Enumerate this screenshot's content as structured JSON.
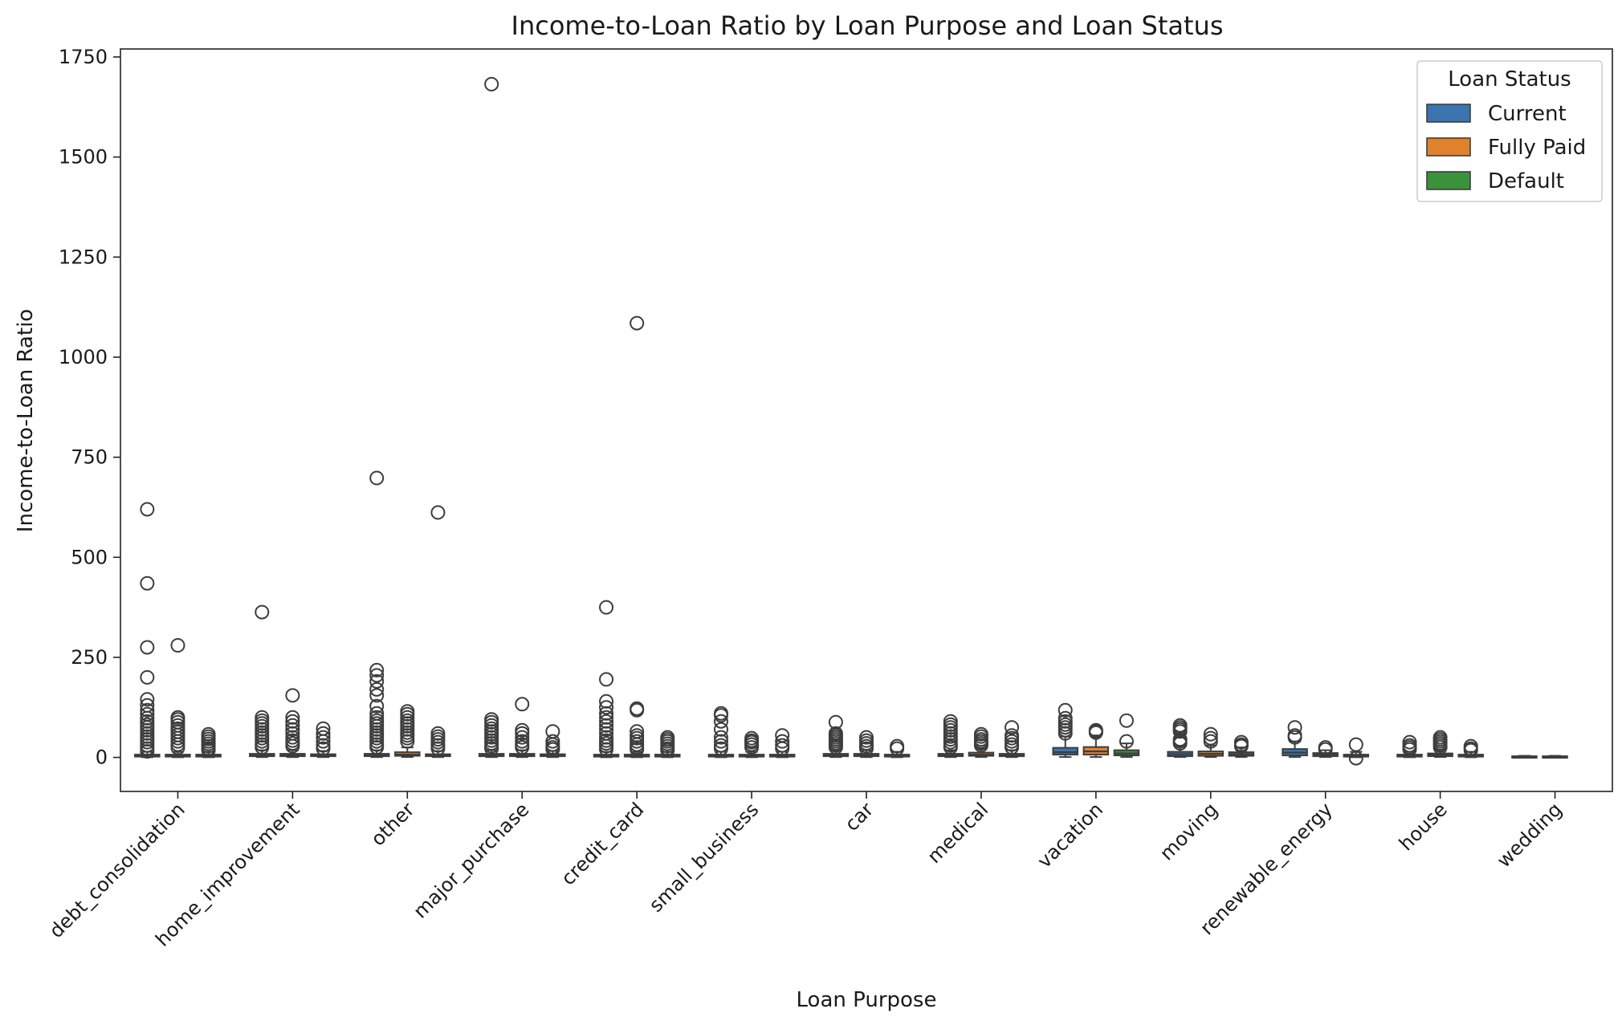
{
  "chart_data": {
    "type": "box",
    "title": "Income-to-Loan Ratio by Loan Purpose and Loan Status",
    "xlabel": "Loan Purpose",
    "ylabel": "Income-to-Loan Ratio",
    "ylim": [
      -85,
      1770
    ],
    "yticks": [
      0,
      250,
      500,
      750,
      1000,
      1250,
      1500,
      1750
    ],
    "grid": false,
    "legend": {
      "title": "Loan Status",
      "position": "top-right",
      "entries": [
        {
          "name": "Current",
          "color": "#3a75af"
        },
        {
          "name": "Fully Paid",
          "color": "#e1812c"
        },
        {
          "name": "Default",
          "color": "#3a923a"
        }
      ]
    },
    "categories": [
      "debt_consolidation",
      "home_improvement",
      "other",
      "major_purchase",
      "credit_card",
      "small_business",
      "car",
      "medical",
      "vacation",
      "moving",
      "renewable_energy",
      "house",
      "wedding"
    ],
    "series": [
      {
        "name": "Current",
        "color": "#3a75af",
        "boxes": [
          {
            "q1": 2,
            "median": 4,
            "q3": 7,
            "whislo": 0.5,
            "whishi": 14,
            "fliers": [
              620,
              435,
              275,
              200,
              145,
              130,
              118,
              108,
              98,
              90,
              82,
              75,
              68,
              60,
              52,
              45,
              38,
              30,
              22,
              15
            ]
          },
          {
            "q1": 3,
            "median": 5,
            "q3": 9,
            "whislo": 0.8,
            "whishi": 18,
            "fliers": [
              363,
              100,
              92,
              85,
              78,
              70,
              62,
              55,
              48,
              40,
              32,
              25
            ]
          },
          {
            "q1": 3,
            "median": 5,
            "q3": 9,
            "whislo": 0.8,
            "whishi": 18,
            "fliers": [
              698,
              218,
              205,
              190,
              170,
              155,
              128,
              110,
              100,
              92,
              85,
              78,
              70,
              62,
              55,
              48,
              40,
              32,
              25
            ]
          },
          {
            "q1": 3,
            "median": 5,
            "q3": 9,
            "whislo": 0.8,
            "whishi": 18,
            "fliers": [
              1682,
              95,
              88,
              80,
              72,
              65,
              58,
              50,
              42,
              35,
              28,
              22
            ]
          },
          {
            "q1": 2,
            "median": 4,
            "q3": 7,
            "whislo": 0.5,
            "whishi": 14,
            "fliers": [
              375,
              195,
              140,
              125,
              110,
              100,
              90,
              80,
              70,
              60,
              50,
              42,
              35,
              28,
              20
            ]
          },
          {
            "q1": 2,
            "median": 4,
            "q3": 7,
            "whislo": 0.5,
            "whishi": 14,
            "fliers": [
              110,
              105,
              90,
              70,
              50,
              40,
              30,
              22
            ]
          },
          {
            "q1": 3,
            "median": 5,
            "q3": 9,
            "whislo": 0.8,
            "whishi": 18,
            "fliers": [
              88,
              60,
              55,
              50,
              45,
              40,
              35,
              30,
              25
            ]
          },
          {
            "q1": 3,
            "median": 5,
            "q3": 9,
            "whislo": 0.8,
            "whishi": 18,
            "fliers": [
              90,
              82,
              75,
              68,
              60,
              52,
              45,
              38,
              30,
              25
            ]
          },
          {
            "q1": 7,
            "median": 13,
            "q3": 24,
            "whislo": 1,
            "whishi": 52,
            "fliers": [
              118,
              98,
              90,
              82,
              75,
              68,
              60
            ]
          },
          {
            "q1": 3,
            "median": 8,
            "q3": 14,
            "whislo": 1,
            "whishi": 28,
            "fliers": [
              80,
              75,
              70,
              65,
              45,
              40,
              35
            ]
          },
          {
            "q1": 5,
            "median": 12,
            "q3": 21,
            "whislo": 1,
            "whishi": 40,
            "fliers": [
              75,
              55,
              50
            ]
          },
          {
            "q1": 2,
            "median": 4,
            "q3": 7,
            "whislo": 0.5,
            "whishi": 14,
            "fliers": [
              38,
              30,
              25,
              20
            ]
          },
          {
            "q1": 1,
            "median": 2,
            "q3": 3,
            "whislo": 1,
            "whishi": 4,
            "fliers": []
          }
        ]
      },
      {
        "name": "Fully Paid",
        "color": "#e1812c",
        "boxes": [
          {
            "q1": 2,
            "median": 4,
            "q3": 7,
            "whislo": 0.5,
            "whishi": 14,
            "fliers": [
              280,
              100,
              95,
              88,
              80,
              72,
              64,
              56,
              48,
              40,
              32,
              24
            ]
          },
          {
            "q1": 3,
            "median": 5,
            "q3": 9,
            "whislo": 0.8,
            "whishi": 18,
            "fliers": [
              155,
              100,
              90,
              80,
              70,
              60,
              50,
              42,
              35,
              28
            ]
          },
          {
            "q1": 4,
            "median": 7,
            "q3": 13,
            "whislo": 1,
            "whishi": 25,
            "fliers": [
              115,
              108,
              100,
              92,
              85,
              78,
              70,
              62,
              55,
              48,
              40
            ]
          },
          {
            "q1": 3,
            "median": 5,
            "q3": 9,
            "whislo": 0.8,
            "whishi": 18,
            "fliers": [
              133,
              68,
              60,
              50,
              40,
              32,
              25
            ]
          },
          {
            "q1": 2,
            "median": 4,
            "q3": 7,
            "whislo": 0.5,
            "whishi": 14,
            "fliers": [
              1085,
              122,
              118,
              65,
              55,
              48,
              40,
              32,
              25,
              20
            ]
          },
          {
            "q1": 2,
            "median": 4,
            "q3": 7,
            "whislo": 0.5,
            "whishi": 14,
            "fliers": [
              48,
              42,
              38,
              32,
              25
            ]
          },
          {
            "q1": 3,
            "median": 5,
            "q3": 9,
            "whislo": 0.8,
            "whishi": 18,
            "fliers": [
              50,
              42,
              35,
              28,
              22
            ]
          },
          {
            "q1": 4,
            "median": 7,
            "q3": 12,
            "whislo": 1,
            "whishi": 22,
            "fliers": [
              58,
              52,
              45,
              40,
              35,
              30
            ]
          },
          {
            "q1": 7,
            "median": 15,
            "q3": 26,
            "whislo": 1,
            "whishi": 55,
            "fliers": [
              68,
              65,
              62
            ]
          },
          {
            "q1": 4,
            "median": 9,
            "q3": 15,
            "whislo": 1,
            "whishi": 30,
            "fliers": [
              58,
              48,
              40
            ]
          },
          {
            "q1": 3,
            "median": 7,
            "q3": 11,
            "whislo": 1,
            "whishi": 18,
            "fliers": [
              25,
              20
            ]
          },
          {
            "q1": 3,
            "median": 6,
            "q3": 10,
            "whislo": 1,
            "whishi": 18,
            "fliers": [
              50,
              45,
              40,
              35,
              30,
              25
            ]
          },
          {
            "q1": 1,
            "median": 2,
            "q3": 3,
            "whislo": 1,
            "whishi": 4,
            "fliers": []
          }
        ]
      },
      {
        "name": "Default",
        "color": "#3a923a",
        "boxes": [
          {
            "q1": 2,
            "median": 4,
            "q3": 7,
            "whislo": 0.5,
            "whishi": 14,
            "fliers": [
              58,
              52,
              46,
              40,
              34,
              28,
              22,
              18
            ]
          },
          {
            "q1": 3,
            "median": 5,
            "q3": 8,
            "whislo": 0.8,
            "whishi": 16,
            "fliers": [
              72,
              60,
              50,
              40,
              30,
              22
            ]
          },
          {
            "q1": 3,
            "median": 5,
            "q3": 8,
            "whislo": 0.8,
            "whishi": 16,
            "fliers": [
              612,
              60,
              52,
              45,
              38,
              30,
              22
            ]
          },
          {
            "q1": 3,
            "median": 5,
            "q3": 8,
            "whislo": 0.8,
            "whishi": 16,
            "fliers": [
              65,
              40,
              32,
              25,
              20
            ]
          },
          {
            "q1": 2,
            "median": 4,
            "q3": 7,
            "whislo": 0.5,
            "whishi": 14,
            "fliers": [
              50,
              45,
              40,
              34,
              28,
              22,
              18
            ]
          },
          {
            "q1": 2,
            "median": 4,
            "q3": 7,
            "whislo": 0.5,
            "whishi": 14,
            "fliers": [
              55,
              40,
              30,
              22
            ]
          },
          {
            "q1": 2,
            "median": 4,
            "q3": 7,
            "whislo": 0.5,
            "whishi": 14,
            "fliers": [
              28,
              22
            ]
          },
          {
            "q1": 3,
            "median": 5,
            "q3": 9,
            "whislo": 0.8,
            "whishi": 18,
            "fliers": [
              75,
              55,
              48,
              40,
              32,
              25
            ]
          },
          {
            "q1": 5,
            "median": 10,
            "q3": 18,
            "whislo": 1,
            "whishi": 35,
            "fliers": [
              92,
              40
            ]
          },
          {
            "q1": 4,
            "median": 8,
            "q3": 13,
            "whislo": 1,
            "whishi": 25,
            "fliers": [
              38,
              32,
              28
            ]
          },
          {
            "q1": 2,
            "median": 4,
            "q3": 7,
            "whislo": 0.5,
            "whishi": 14,
            "fliers": [
              32,
              -2
            ]
          },
          {
            "q1": 2,
            "median": 4,
            "q3": 7,
            "whislo": 0.5,
            "whishi": 14,
            "fliers": [
              28,
              22,
              18
            ]
          },
          null
        ]
      }
    ]
  }
}
